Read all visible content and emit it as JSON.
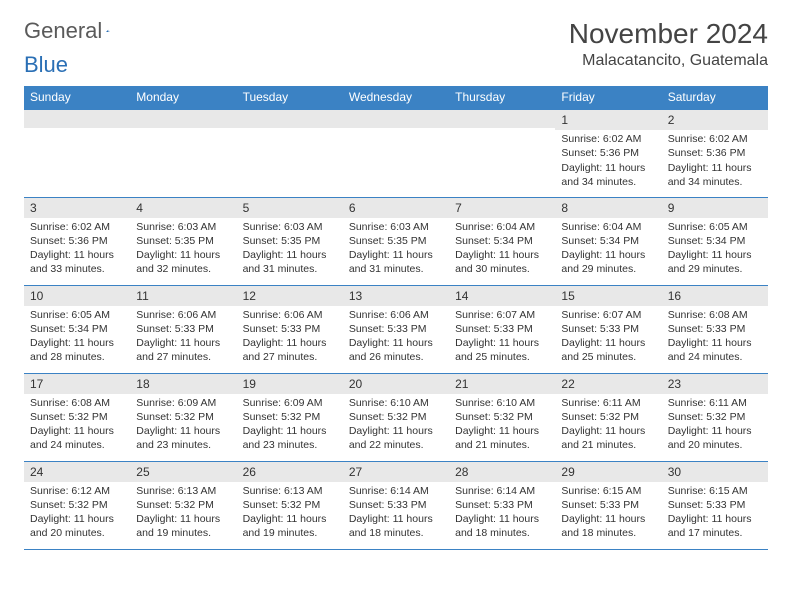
{
  "logo": {
    "word1": "General",
    "word2": "Blue"
  },
  "title": "November 2024",
  "location": "Malacatancito, Guatemala",
  "colors": {
    "header_bg": "#3b82c4",
    "header_text": "#ffffff",
    "daynum_bg": "#e8e8e8",
    "border": "#3b82c4",
    "text": "#333333",
    "logo_gray": "#5a5a5a",
    "logo_blue": "#2a6fb5"
  },
  "weekdays": [
    "Sunday",
    "Monday",
    "Tuesday",
    "Wednesday",
    "Thursday",
    "Friday",
    "Saturday"
  ],
  "weeks": [
    [
      {
        "n": "",
        "sunrise": "",
        "sunset": "",
        "daylight": ""
      },
      {
        "n": "",
        "sunrise": "",
        "sunset": "",
        "daylight": ""
      },
      {
        "n": "",
        "sunrise": "",
        "sunset": "",
        "daylight": ""
      },
      {
        "n": "",
        "sunrise": "",
        "sunset": "",
        "daylight": ""
      },
      {
        "n": "",
        "sunrise": "",
        "sunset": "",
        "daylight": ""
      },
      {
        "n": "1",
        "sunrise": "Sunrise: 6:02 AM",
        "sunset": "Sunset: 5:36 PM",
        "daylight": "Daylight: 11 hours and 34 minutes."
      },
      {
        "n": "2",
        "sunrise": "Sunrise: 6:02 AM",
        "sunset": "Sunset: 5:36 PM",
        "daylight": "Daylight: 11 hours and 34 minutes."
      }
    ],
    [
      {
        "n": "3",
        "sunrise": "Sunrise: 6:02 AM",
        "sunset": "Sunset: 5:36 PM",
        "daylight": "Daylight: 11 hours and 33 minutes."
      },
      {
        "n": "4",
        "sunrise": "Sunrise: 6:03 AM",
        "sunset": "Sunset: 5:35 PM",
        "daylight": "Daylight: 11 hours and 32 minutes."
      },
      {
        "n": "5",
        "sunrise": "Sunrise: 6:03 AM",
        "sunset": "Sunset: 5:35 PM",
        "daylight": "Daylight: 11 hours and 31 minutes."
      },
      {
        "n": "6",
        "sunrise": "Sunrise: 6:03 AM",
        "sunset": "Sunset: 5:35 PM",
        "daylight": "Daylight: 11 hours and 31 minutes."
      },
      {
        "n": "7",
        "sunrise": "Sunrise: 6:04 AM",
        "sunset": "Sunset: 5:34 PM",
        "daylight": "Daylight: 11 hours and 30 minutes."
      },
      {
        "n": "8",
        "sunrise": "Sunrise: 6:04 AM",
        "sunset": "Sunset: 5:34 PM",
        "daylight": "Daylight: 11 hours and 29 minutes."
      },
      {
        "n": "9",
        "sunrise": "Sunrise: 6:05 AM",
        "sunset": "Sunset: 5:34 PM",
        "daylight": "Daylight: 11 hours and 29 minutes."
      }
    ],
    [
      {
        "n": "10",
        "sunrise": "Sunrise: 6:05 AM",
        "sunset": "Sunset: 5:34 PM",
        "daylight": "Daylight: 11 hours and 28 minutes."
      },
      {
        "n": "11",
        "sunrise": "Sunrise: 6:06 AM",
        "sunset": "Sunset: 5:33 PM",
        "daylight": "Daylight: 11 hours and 27 minutes."
      },
      {
        "n": "12",
        "sunrise": "Sunrise: 6:06 AM",
        "sunset": "Sunset: 5:33 PM",
        "daylight": "Daylight: 11 hours and 27 minutes."
      },
      {
        "n": "13",
        "sunrise": "Sunrise: 6:06 AM",
        "sunset": "Sunset: 5:33 PM",
        "daylight": "Daylight: 11 hours and 26 minutes."
      },
      {
        "n": "14",
        "sunrise": "Sunrise: 6:07 AM",
        "sunset": "Sunset: 5:33 PM",
        "daylight": "Daylight: 11 hours and 25 minutes."
      },
      {
        "n": "15",
        "sunrise": "Sunrise: 6:07 AM",
        "sunset": "Sunset: 5:33 PM",
        "daylight": "Daylight: 11 hours and 25 minutes."
      },
      {
        "n": "16",
        "sunrise": "Sunrise: 6:08 AM",
        "sunset": "Sunset: 5:33 PM",
        "daylight": "Daylight: 11 hours and 24 minutes."
      }
    ],
    [
      {
        "n": "17",
        "sunrise": "Sunrise: 6:08 AM",
        "sunset": "Sunset: 5:32 PM",
        "daylight": "Daylight: 11 hours and 24 minutes."
      },
      {
        "n": "18",
        "sunrise": "Sunrise: 6:09 AM",
        "sunset": "Sunset: 5:32 PM",
        "daylight": "Daylight: 11 hours and 23 minutes."
      },
      {
        "n": "19",
        "sunrise": "Sunrise: 6:09 AM",
        "sunset": "Sunset: 5:32 PM",
        "daylight": "Daylight: 11 hours and 23 minutes."
      },
      {
        "n": "20",
        "sunrise": "Sunrise: 6:10 AM",
        "sunset": "Sunset: 5:32 PM",
        "daylight": "Daylight: 11 hours and 22 minutes."
      },
      {
        "n": "21",
        "sunrise": "Sunrise: 6:10 AM",
        "sunset": "Sunset: 5:32 PM",
        "daylight": "Daylight: 11 hours and 21 minutes."
      },
      {
        "n": "22",
        "sunrise": "Sunrise: 6:11 AM",
        "sunset": "Sunset: 5:32 PM",
        "daylight": "Daylight: 11 hours and 21 minutes."
      },
      {
        "n": "23",
        "sunrise": "Sunrise: 6:11 AM",
        "sunset": "Sunset: 5:32 PM",
        "daylight": "Daylight: 11 hours and 20 minutes."
      }
    ],
    [
      {
        "n": "24",
        "sunrise": "Sunrise: 6:12 AM",
        "sunset": "Sunset: 5:32 PM",
        "daylight": "Daylight: 11 hours and 20 minutes."
      },
      {
        "n": "25",
        "sunrise": "Sunrise: 6:13 AM",
        "sunset": "Sunset: 5:32 PM",
        "daylight": "Daylight: 11 hours and 19 minutes."
      },
      {
        "n": "26",
        "sunrise": "Sunrise: 6:13 AM",
        "sunset": "Sunset: 5:32 PM",
        "daylight": "Daylight: 11 hours and 19 minutes."
      },
      {
        "n": "27",
        "sunrise": "Sunrise: 6:14 AM",
        "sunset": "Sunset: 5:33 PM",
        "daylight": "Daylight: 11 hours and 18 minutes."
      },
      {
        "n": "28",
        "sunrise": "Sunrise: 6:14 AM",
        "sunset": "Sunset: 5:33 PM",
        "daylight": "Daylight: 11 hours and 18 minutes."
      },
      {
        "n": "29",
        "sunrise": "Sunrise: 6:15 AM",
        "sunset": "Sunset: 5:33 PM",
        "daylight": "Daylight: 11 hours and 18 minutes."
      },
      {
        "n": "30",
        "sunrise": "Sunrise: 6:15 AM",
        "sunset": "Sunset: 5:33 PM",
        "daylight": "Daylight: 11 hours and 17 minutes."
      }
    ]
  ]
}
